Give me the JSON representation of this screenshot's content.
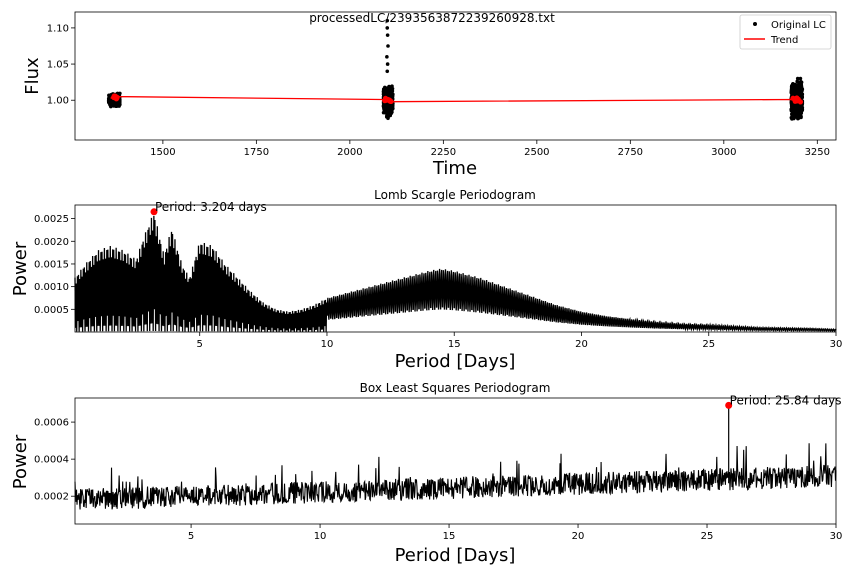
{
  "chart_data": [
    {
      "type": "scatter",
      "title": "processedLC/2393563872239260928.txt",
      "xlabel": "Time",
      "ylabel": "Flux",
      "xlim": [
        1265,
        3300
      ],
      "ylim": [
        0.945,
        1.122
      ],
      "xticks": [
        1500,
        1750,
        2000,
        2250,
        2500,
        2750,
        3000,
        3250
      ],
      "yticks": [
        1.0,
        1.05,
        1.1
      ],
      "ytick_labels": [
        "1.00",
        "1.05",
        "1.10"
      ],
      "legend": {
        "position": "top-right",
        "entries": [
          "Original LC",
          "Trend"
        ]
      },
      "series": [
        {
          "name": "Original LC",
          "kind": "points",
          "color": "#000000",
          "clusters": [
            {
              "x_range": [
                1355,
                1385
              ],
              "center": 1.0,
              "spread": 0.011
            },
            {
              "x_range": [
                2090,
                2115
              ],
              "center": 1.0,
              "spread": 0.025
            },
            {
              "x_range": [
                3180,
                3210
              ],
              "center": 1.0,
              "spread": 0.036
            }
          ],
          "outliers": [
            {
              "x": 2100,
              "y": 1.11
            },
            {
              "x": 2100,
              "y": 1.1
            },
            {
              "x": 2101,
              "y": 1.09
            },
            {
              "x": 2102,
              "y": 1.075
            },
            {
              "x": 2099,
              "y": 1.06
            },
            {
              "x": 2101,
              "y": 1.05
            },
            {
              "x": 2100,
              "y": 1.04
            },
            {
              "x": 2102,
              "y": 0.975
            }
          ]
        },
        {
          "name": "Trend",
          "kind": "line",
          "color": "#ff0000",
          "x": [
            1360,
            1385,
            2085,
            2110,
            3185,
            3210
          ],
          "y": [
            1.003,
            1.005,
            1.001,
            0.998,
            1.001,
            1.0
          ]
        }
      ]
    },
    {
      "type": "line",
      "title": "Lomb Scargle Periodogram",
      "xlabel": "Period [Days]",
      "ylabel": "Power",
      "xlim": [
        0.1,
        30
      ],
      "ylim": [
        0,
        0.0028
      ],
      "xticks": [
        5,
        10,
        15,
        20,
        25,
        30
      ],
      "yticks": [
        0.0005,
        0.001,
        0.0015,
        0.002,
        0.0025
      ],
      "ytick_labels": [
        "0.0005",
        "0.0010",
        "0.0015",
        "0.0020",
        "0.0025"
      ],
      "peak": {
        "x": 3.204,
        "y": 0.00265,
        "label": "Period: 3.204 days",
        "color": "#ff0000"
      },
      "envelope": {
        "x": [
          0.1,
          0.5,
          1.0,
          1.5,
          2.0,
          2.5,
          2.8,
          3.2,
          3.6,
          3.9,
          4.3,
          4.6,
          5.0,
          5.5,
          6.0,
          6.5,
          7.0,
          7.5,
          8.0,
          8.5,
          9.0,
          9.5,
          10.0,
          11.0,
          12.0,
          13.0,
          14.0,
          14.5,
          15.0,
          16.0,
          17.0,
          18.0,
          19.0,
          20.0,
          21.0,
          22.0,
          23.0,
          24.0,
          25.0,
          26.0,
          27.0,
          28.0,
          29.0,
          30.0
        ],
        "y": [
          0.0012,
          0.0015,
          0.0018,
          0.0019,
          0.0018,
          0.0016,
          0.0021,
          0.00265,
          0.0017,
          0.0023,
          0.0015,
          0.0012,
          0.002,
          0.0019,
          0.0015,
          0.0012,
          0.0009,
          0.00065,
          0.0005,
          0.00045,
          0.0005,
          0.0006,
          0.00075,
          0.0009,
          0.00105,
          0.0012,
          0.00135,
          0.0014,
          0.00135,
          0.0012,
          0.001,
          0.0008,
          0.0006,
          0.00045,
          0.00035,
          0.00028,
          0.00022,
          0.00018,
          0.00016,
          0.00013,
          0.0001,
          9e-05,
          8e-05,
          6e-05
        ]
      }
    },
    {
      "type": "line",
      "title": "Box Least Squares Periodogram",
      "xlabel": "Period [Days]",
      "ylabel": "Power",
      "xlim": [
        0.5,
        30
      ],
      "ylim": [
        5e-05,
        0.00073
      ],
      "xticks": [
        5,
        10,
        15,
        20,
        25,
        30
      ],
      "yticks": [
        0.0002,
        0.0004,
        0.0006
      ],
      "ytick_labels": [
        "0.0002",
        "0.0004",
        "0.0006"
      ],
      "peak": {
        "x": 25.84,
        "y": 0.00069,
        "label": "Period: 25.84 days",
        "color": "#ff0000"
      },
      "baseline": {
        "x": [
          0.5,
          30
        ],
        "y": [
          0.00018,
          0.00031
        ]
      },
      "noise_amplitude": 6e-05
    }
  ]
}
